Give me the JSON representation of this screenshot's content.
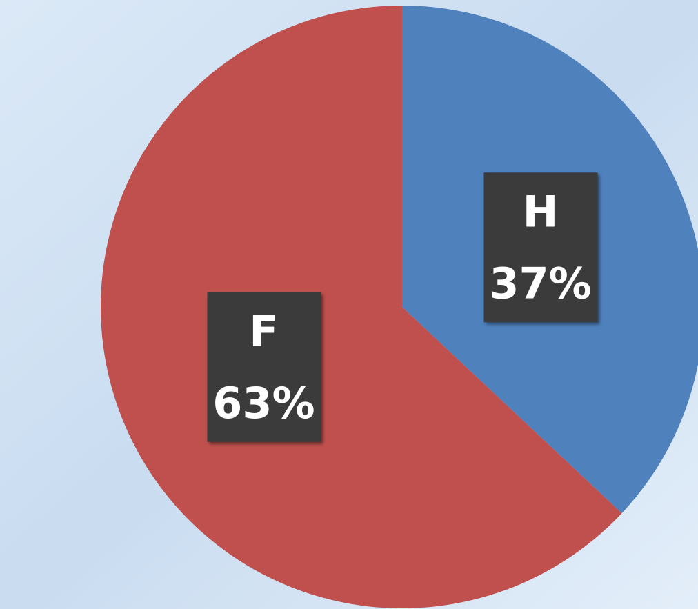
{
  "chart_data": {
    "type": "pie",
    "categories": [
      "H",
      "F"
    ],
    "values": [
      37,
      63
    ],
    "value_labels": [
      "37%",
      "63%"
    ],
    "colors": [
      "#4f81bd",
      "#c0504d"
    ]
  }
}
